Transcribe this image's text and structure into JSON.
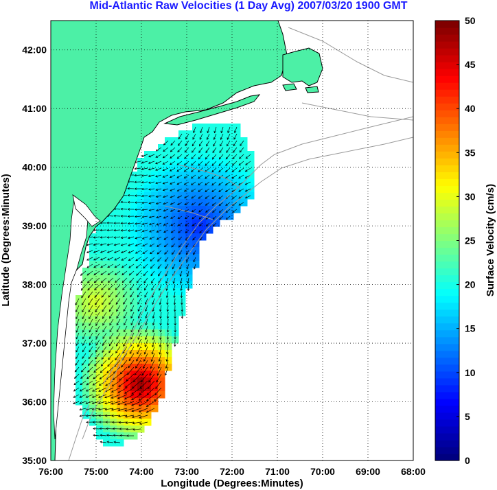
{
  "title": "Mid-Atlantic Raw Velocities (1 Day Avg) 2007/03/20 1900 GMT",
  "map": {
    "xlabel": "Longitude (Degrees:Minutes)",
    "ylabel": "Latitude (Degrees:Minutes)",
    "lon_range": [
      -76,
      -68
    ],
    "lat_range": [
      35,
      42.5
    ],
    "lon_ticks": [
      "76:00",
      "75:00",
      "74:00",
      "73:00",
      "72:00",
      "71:00",
      "70:00",
      "69:00",
      "68:00"
    ],
    "lat_ticks": [
      "35:00",
      "36:00",
      "37:00",
      "38:00",
      "39:00",
      "40:00",
      "41:00",
      "42:00"
    ],
    "grid": "dotted",
    "land_color": "#4cf0a6",
    "coast_line_color": "#999999"
  },
  "colorbar": {
    "label": "Surface Velocity (cm/s)",
    "range": [
      0,
      50
    ],
    "ticks": [
      "0",
      "5",
      "10",
      "15",
      "20",
      "25",
      "30",
      "35",
      "40",
      "45",
      "50"
    ],
    "colormap": "jet"
  }
}
